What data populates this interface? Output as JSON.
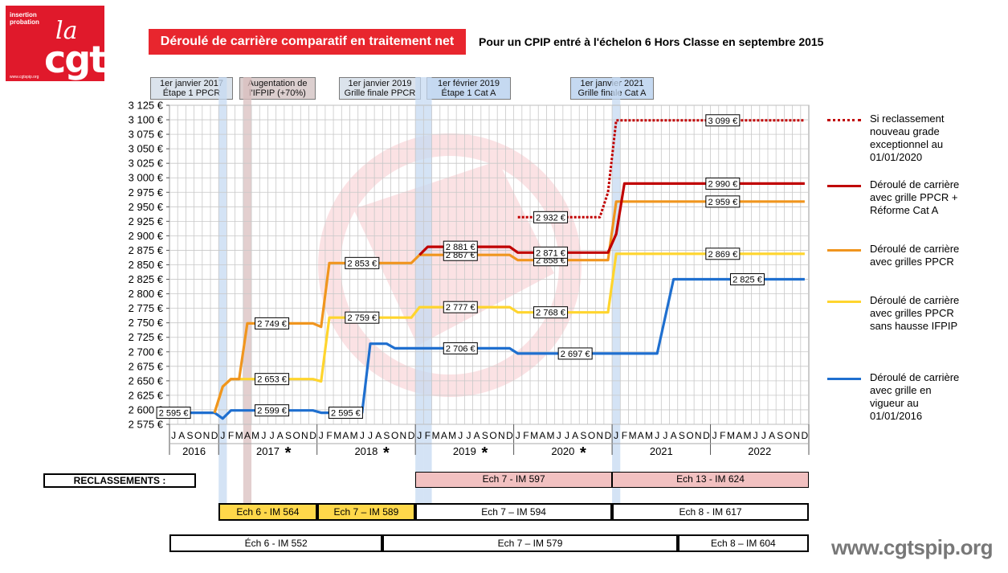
{
  "logo": {
    "line1": "insertion",
    "line2": "probation",
    "la": "la",
    "cgt": "cgt",
    "url": "www.cgtspip.org"
  },
  "title": "Déroulé de carrière comparatif en traitement net",
  "subtitle": "Pour un CPIP entré à l'échelon 6 Hors Classe en septembre  2015",
  "milestones": [
    {
      "line1": "1er janvier 2017",
      "line2": "Étape 1 PPCR"
    },
    {
      "line1": "Augentation de",
      "line2": "l'IFPIP (+70%)"
    },
    {
      "line1": "1er janvier 2019",
      "line2": "Grille finale PPCR"
    },
    {
      "line1": "1er février 2019",
      "line2": "Étape 1 Cat A"
    },
    {
      "line1": "1er janvier 2021",
      "line2": "Grille finale Cat A"
    }
  ],
  "legend": [
    {
      "text": "Si reclassement nouveau grade exceptionnel au 01/01/2020",
      "color": "#c00000",
      "dotted": true
    },
    {
      "text": "Déroulé de carrière avec grille PPCR + Réforme Cat A",
      "color": "#c00000"
    },
    {
      "text": "Déroulé de carrière avec grilles PPCR",
      "color": "#f0951e"
    },
    {
      "text": "Déroulé de carrière avec grilles PPCR sans hausse IFPIP",
      "color": "#ffd52e"
    },
    {
      "text": "Déroulé de carrière avec grille en vigueur au 01/01/2016",
      "color": "#1f6fcf"
    }
  ],
  "chart_data": {
    "type": "line",
    "title": "Déroulé de carrière comparatif en traitement net",
    "ylim": [
      2575,
      3125
    ],
    "ystep": 25,
    "y_tick_labels": [
      "2 575 €",
      "2 600 €",
      "2 625 €",
      "2 650 €",
      "2 675 €",
      "2 700 €",
      "2 725 €",
      "2 750 €",
      "2 775 €",
      "2 800 €",
      "2 825 €",
      "2 850 €",
      "2 875 €",
      "2 900 €",
      "2 925 €",
      "2 950 €",
      "2 975 €",
      "3 000 €",
      "3 025 €",
      "3 050 €",
      "3 075 €",
      "3 100 €",
      "3 125 €"
    ],
    "x_start": "2016-07",
    "x_end": "2022-12",
    "months_2016": [
      "J",
      "A",
      "S",
      "O",
      "N",
      "D"
    ],
    "months_full": [
      "J",
      "F",
      "M",
      "A",
      "M",
      "J",
      "J",
      "A",
      "S",
      "O",
      "N",
      "D"
    ],
    "years": [
      "2016",
      "2017",
      "2018",
      "2019",
      "2020",
      "2021",
      "2022"
    ],
    "year_stars": [
      false,
      true,
      true,
      true,
      true,
      false,
      false
    ],
    "star": "*",
    "grid": true,
    "legend_position": "right",
    "highlights": [
      {
        "from": "2017-01",
        "to": "2017-01",
        "color": "#c5d9f1"
      },
      {
        "from": "2017-04",
        "to": "2017-04",
        "color": "#d9bfbf"
      },
      {
        "from": "2019-01",
        "to": "2019-01",
        "color": "#c5d9f1"
      },
      {
        "from": "2019-02",
        "to": "2019-02",
        "color": "#c5d9f1"
      },
      {
        "from": "2021-01",
        "to": "2021-01",
        "color": "#c5d9f1"
      }
    ],
    "series": [
      {
        "name": "Si reclassement nouveau grade exceptionnel au 01/01/2020",
        "color": "#c00000",
        "dotted": true,
        "points": [
          [
            "2020-01",
            2932
          ],
          [
            "2020-11",
            2932
          ],
          [
            "2020-12",
            2975
          ],
          [
            "2021-01",
            3099
          ],
          [
            "2022-12",
            3099
          ]
        ]
      },
      {
        "name": "Déroulé de carrière avec grille PPCR + Réforme Cat A",
        "color": "#c00000",
        "points": [
          [
            "2019-01",
            2867
          ],
          [
            "2019-02",
            2881
          ],
          [
            "2019-12",
            2881
          ],
          [
            "2020-01",
            2871
          ],
          [
            "2020-12",
            2871
          ],
          [
            "2021-01",
            2903
          ],
          [
            "2021-02",
            2990
          ],
          [
            "2022-12",
            2990
          ]
        ]
      },
      {
        "name": "Déroulé de carrière avec grilles PPCR",
        "color": "#f0951e",
        "points": [
          [
            "2016-12",
            2595
          ],
          [
            "2017-01",
            2640
          ],
          [
            "2017-02",
            2653
          ],
          [
            "2017-03",
            2653
          ],
          [
            "2017-04",
            2749
          ],
          [
            "2017-12",
            2749
          ],
          [
            "2018-01",
            2743
          ],
          [
            "2018-02",
            2853
          ],
          [
            "2018-12",
            2853
          ],
          [
            "2019-01",
            2867
          ],
          [
            "2019-12",
            2867
          ],
          [
            "2020-01",
            2858
          ],
          [
            "2020-12",
            2858
          ],
          [
            "2021-01",
            2959
          ],
          [
            "2022-12",
            2959
          ]
        ]
      },
      {
        "name": "Déroulé de carrière avec grilles PPCR sans hausse IFPIP",
        "color": "#ffd52e",
        "points": [
          [
            "2016-12",
            2595
          ],
          [
            "2017-01",
            2640
          ],
          [
            "2017-02",
            2653
          ],
          [
            "2017-12",
            2653
          ],
          [
            "2018-01",
            2649
          ],
          [
            "2018-02",
            2759
          ],
          [
            "2018-12",
            2759
          ],
          [
            "2019-01",
            2777
          ],
          [
            "2019-12",
            2777
          ],
          [
            "2020-01",
            2768
          ],
          [
            "2020-12",
            2768
          ],
          [
            "2021-01",
            2869
          ],
          [
            "2022-12",
            2869
          ]
        ]
      },
      {
        "name": "Déroulé de carrière avec grille en vigueur au 01/01/2016",
        "color": "#1f6fcf",
        "points": [
          [
            "2016-07",
            2595
          ],
          [
            "2016-12",
            2595
          ],
          [
            "2017-01",
            2585
          ],
          [
            "2017-02",
            2599
          ],
          [
            "2017-12",
            2599
          ],
          [
            "2018-01",
            2595
          ],
          [
            "2018-06",
            2595
          ],
          [
            "2018-07",
            2714
          ],
          [
            "2018-09",
            2714
          ],
          [
            "2018-10",
            2706
          ],
          [
            "2019-12",
            2706
          ],
          [
            "2020-01",
            2697
          ],
          [
            "2021-06",
            2697
          ],
          [
            "2021-08",
            2825
          ],
          [
            "2022-12",
            2825
          ]
        ]
      }
    ],
    "value_labels": [
      {
        "at": "2016-07",
        "y": 2595,
        "text": "2 595 €"
      },
      {
        "at": "2017-07",
        "y": 2599,
        "text": "2 599 €"
      },
      {
        "at": "2018-04",
        "y": 2595,
        "text": "2 595 €"
      },
      {
        "at": "2017-07",
        "y": 2653,
        "text": "2 653 €"
      },
      {
        "at": "2017-07",
        "y": 2749,
        "text": "2 749 €"
      },
      {
        "at": "2018-06",
        "y": 2759,
        "text": "2 759 €"
      },
      {
        "at": "2018-06",
        "y": 2853,
        "text": "2 853 €"
      },
      {
        "at": "2019-06",
        "y": 2706,
        "text": "2 706 €"
      },
      {
        "at": "2019-06",
        "y": 2777,
        "text": "2 777 €"
      },
      {
        "at": "2019-06",
        "y": 2867,
        "text": "2 867 €"
      },
      {
        "at": "2019-06",
        "y": 2881,
        "text": "2 881 €"
      },
      {
        "at": "2020-05",
        "y": 2858,
        "text": "2 858 €"
      },
      {
        "at": "2020-05",
        "y": 2768,
        "text": "2 768 €"
      },
      {
        "at": "2020-05",
        "y": 2871,
        "text": "2 871 €"
      },
      {
        "at": "2020-05",
        "y": 2932,
        "text": "2 932 €"
      },
      {
        "at": "2020-08",
        "y": 2697,
        "text": "2 697 €"
      },
      {
        "at": "2022-02",
        "y": 3099,
        "text": "3 099 €"
      },
      {
        "at": "2022-02",
        "y": 2990,
        "text": "2 990 €"
      },
      {
        "at": "2022-02",
        "y": 2959,
        "text": "2 959 €"
      },
      {
        "at": "2022-02",
        "y": 2869,
        "text": "2 869 €"
      },
      {
        "at": "2022-05",
        "y": 2825,
        "text": "2 825 €"
      }
    ]
  },
  "reclassements": {
    "label": "RECLASSEMENTS :",
    "row1": [
      {
        "text": "Ech 7 - IM 597",
        "from": "2019-01",
        "to": "2020-12",
        "bg": "#f2c1c1"
      },
      {
        "text": "",
        "from": "2021-01",
        "to": "2021-01",
        "bg": "#f2c1c1"
      },
      {
        "text": "Ech 13 - IM 624",
        "from": "2021-01",
        "to": "2022-12",
        "bg": "#f2c1c1"
      }
    ],
    "row2": [
      {
        "text": "Ech 6 - IM 564",
        "from": "2017-01",
        "to": "2017-12",
        "bg": "#ffd84a"
      },
      {
        "text": "Ech 7 – IM 589",
        "from": "2018-01",
        "to": "2018-12",
        "bg": "#ffd84a"
      },
      {
        "text": "Ech 7 – IM 594",
        "from": "2019-01",
        "to": "2020-12",
        "bg": "#ffffff"
      },
      {
        "text": "Ech 8 - IM 617",
        "from": "2021-01",
        "to": "2022-12",
        "bg": "#ffffff"
      }
    ],
    "row3": [
      {
        "text": "Éch 6 - IM 552",
        "from": "2016-07",
        "to": "2018-08",
        "bg": "#ffffff"
      },
      {
        "text": "Ech 7 – IM 579",
        "from": "2018-09",
        "to": "2021-08",
        "bg": "#ffffff"
      },
      {
        "text": "Ech 8 – IM 604",
        "from": "2021-09",
        "to": "2022-12",
        "bg": "#ffffff"
      }
    ]
  },
  "footer": "www.cgtspip.org"
}
